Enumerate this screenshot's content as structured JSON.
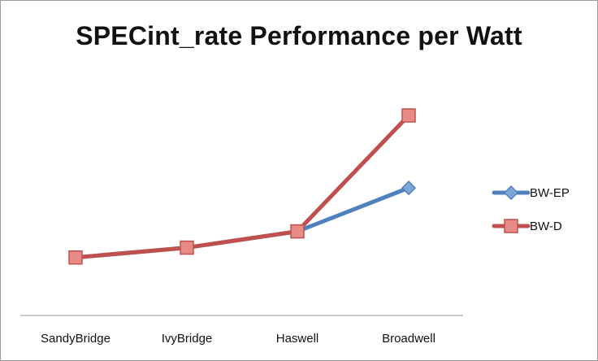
{
  "chart_data": {
    "type": "line",
    "title": "SPECint_rate Performance per Watt",
    "xlabel": "",
    "ylabel": "",
    "categories": [
      "SandyBridge",
      "IvyBridge",
      "Haswell",
      "Broadwell"
    ],
    "series": [
      {
        "name": "BW-EP",
        "values": [
          1.0,
          1.17,
          1.45,
          2.2
        ],
        "color": "#4f81bd",
        "marker": "diamond"
      },
      {
        "name": "BW-D",
        "values": [
          1.0,
          1.17,
          1.45,
          3.45
        ],
        "color": "#c0504d",
        "marker": "square"
      }
    ],
    "ylim": [
      0,
      4.6
    ],
    "grid": false,
    "y_axis_visible": false,
    "legend_position": "right"
  }
}
